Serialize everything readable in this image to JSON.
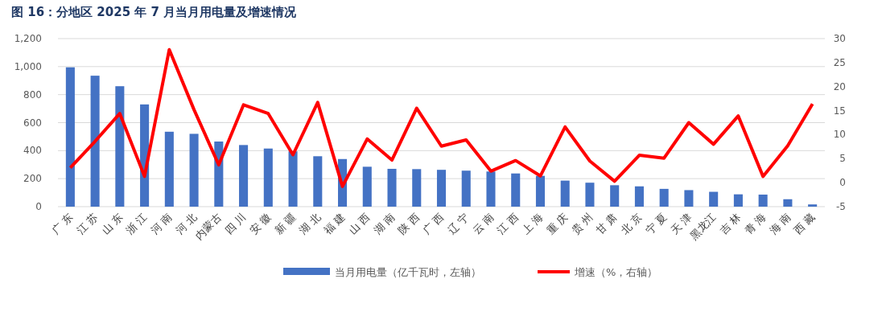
{
  "chart_data": {
    "type": "bar",
    "title": "图 16：分地区 2025 年 7 月当月用电量及增速情况",
    "categories": [
      "广 东",
      "江 苏",
      "山 东",
      "浙 江",
      "河 南",
      "河 北",
      "内蒙古",
      "四 川",
      "安 徽",
      "新 疆",
      "湖 北",
      "福 建",
      "山 西",
      "湖 南",
      "陕 西",
      "广 西",
      "辽 宁",
      "云 南",
      "江 西",
      "上 海",
      "重 庆",
      "贵 州",
      "甘 肃",
      "北 京",
      "宁 夏",
      "天 津",
      "黑龙江",
      "吉 林",
      "青 海",
      "海 南",
      "西 藏"
    ],
    "series": [
      {
        "name": "当月用电量（亿千瓦时，左轴）",
        "color": "#4472c4",
        "values": [
          995,
          935,
          860,
          730,
          535,
          520,
          465,
          440,
          415,
          395,
          360,
          340,
          285,
          270,
          268,
          263,
          257,
          251,
          237,
          220,
          186,
          171,
          153,
          145,
          127,
          118,
          106,
          88,
          86,
          53,
          16
        ]
      },
      {
        "name": "增速（%，右轴）",
        "type": "line",
        "axis": "y2",
        "color": "#ff0000",
        "values": [
          3.1,
          8.6,
          14.4,
          1.3,
          27.7,
          15.2,
          3.7,
          16.2,
          14.4,
          5.8,
          16.7,
          -0.8,
          9.1,
          4.7,
          15.5,
          7.6,
          8.9,
          2.4,
          4.6,
          1.4,
          11.6,
          4.5,
          0.3,
          5.7,
          5.1,
          12.5,
          8.0,
          13.9,
          1.3,
          7.7,
          16.4
        ]
      }
    ],
    "ylim": [
      0,
      1200
    ],
    "yticks": [
      0,
      {
        "value": 200,
        "label": "200"
      },
      {
        "value": 400,
        "label": "400"
      },
      {
        "value": 600,
        "label": "600"
      },
      {
        "value": 800,
        "label": "800"
      },
      {
        "value": 1000,
        "label": "1,000"
      },
      {
        "value": 1200,
        "label": "1,200"
      }
    ],
    "y2lim": [
      -5,
      30
    ],
    "y2ticks": [
      -5,
      0,
      5,
      10,
      15,
      20,
      25,
      30
    ],
    "grid": "y",
    "legend": "bottom",
    "marker": "none",
    "line_style": "solid"
  }
}
